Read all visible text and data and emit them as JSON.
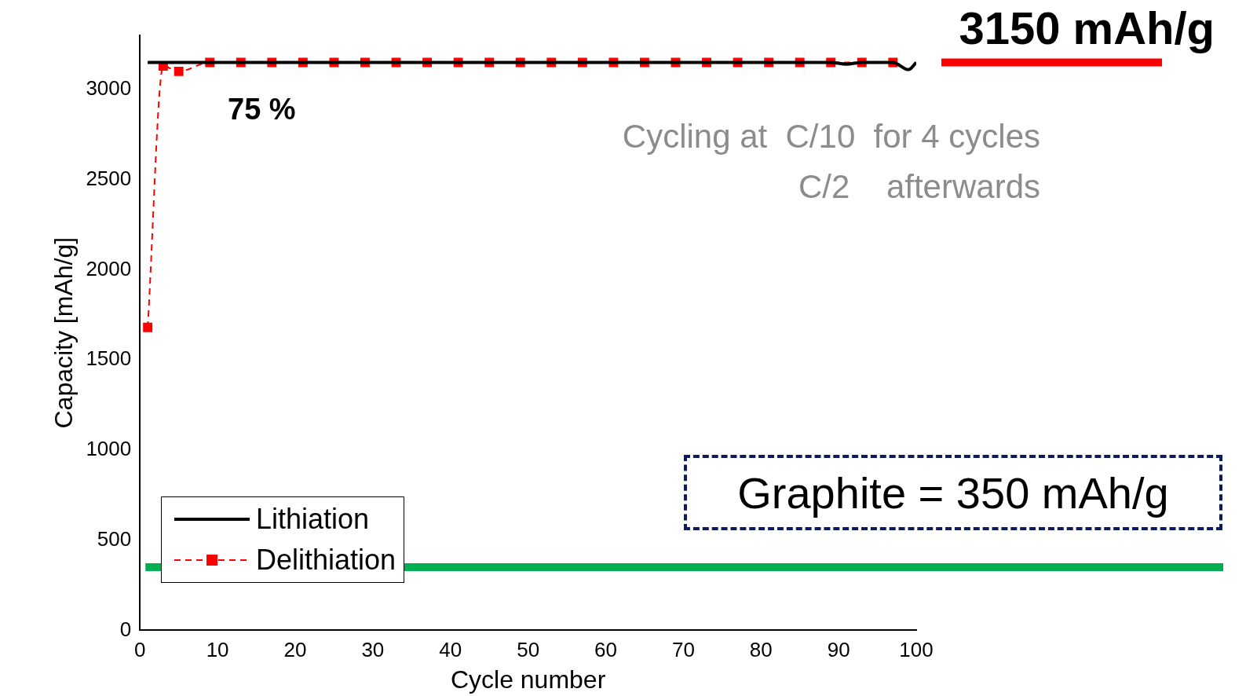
{
  "chart_data": {
    "type": "line",
    "xlabel": "Cycle number",
    "ylabel": "Capacity [mAh/g]",
    "xlim": [
      0,
      100
    ],
    "xticks": [
      0,
      10,
      20,
      30,
      40,
      50,
      60,
      70,
      80,
      90,
      100
    ],
    "ylim": [
      0,
      3300
    ],
    "yticks": [
      0,
      500,
      1000,
      1500,
      2000,
      2500,
      3000
    ],
    "grid": false,
    "legend": "bottom left",
    "series": [
      {
        "name": "Lithiation",
        "color": "#000000",
        "marker": "none",
        "line_style": "solid",
        "x": [
          1,
          5,
          10,
          20,
          30,
          40,
          50,
          60,
          70,
          80,
          89,
          91,
          93,
          97,
          99,
          100
        ],
        "values": [
          3150,
          3150,
          3150,
          3150,
          3150,
          3150,
          3150,
          3150,
          3150,
          3150,
          3150,
          3140,
          3150,
          3150,
          3110,
          3150
        ]
      },
      {
        "name": "Delithiation",
        "color": "#ff0000",
        "marker": "square",
        "line_style": "dashed",
        "x": [
          1,
          3,
          5,
          9,
          13,
          17,
          21,
          25,
          29,
          33,
          37,
          41,
          45,
          49,
          53,
          57,
          61,
          65,
          69,
          73,
          77,
          81,
          85,
          89,
          93,
          97
        ],
        "values": [
          1680,
          3130,
          3100,
          3150,
          3150,
          3150,
          3150,
          3150,
          3150,
          3150,
          3150,
          3150,
          3150,
          3150,
          3150,
          3150,
          3150,
          3150,
          3150,
          3150,
          3150,
          3150,
          3150,
          3150,
          3150,
          3150
        ]
      }
    ],
    "ref_lines": [
      {
        "axis": "y",
        "value": 3150,
        "label": "3150 mAh/g",
        "color": "#ff0000"
      },
      {
        "axis": "y",
        "value": 350,
        "label": "Graphite = 350 mAh/g",
        "color": "#00b050"
      }
    ],
    "annotations": [
      "75 %",
      "Cycling at  C/10  for 4 cycles",
      "C/2    afterwards"
    ]
  }
}
